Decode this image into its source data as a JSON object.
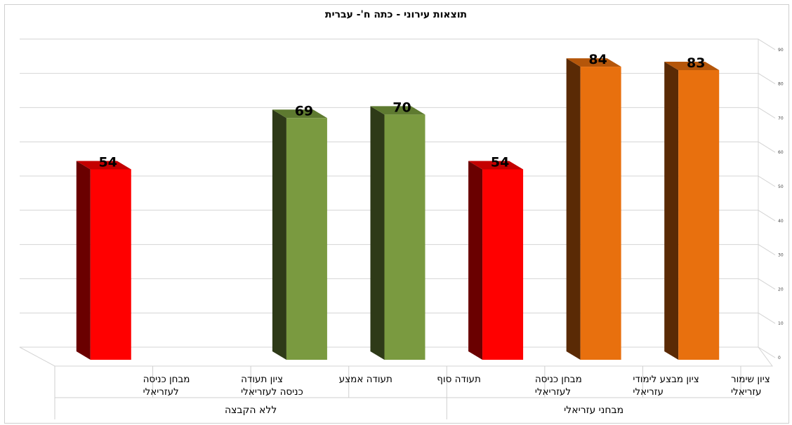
{
  "chart_data": {
    "type": "bar",
    "title": "תוצאות  עירוני - כתה ח'- עברית",
    "categories": [
      [
        "ציון שימור",
        "עזריאלי"
      ],
      [
        "ציון מבצע לימודי",
        "עזריאלי"
      ],
      [
        "מבחן כניסה",
        "לעזריאלי"
      ],
      [
        "תעודה סוף"
      ],
      [
        "תעודה אמצע"
      ],
      [
        "ציון תעודה",
        "כניסה  לעזריאלי"
      ],
      [
        "מבחן כניסה",
        "לעזריאלי"
      ]
    ],
    "values": [
      83,
      84,
      54,
      70,
      69,
      null,
      54
    ],
    "data_labels": [
      "83",
      "84",
      "54",
      "70",
      "69",
      "",
      "54"
    ],
    "bar_colors": [
      "#e8700e",
      "#e8700e",
      "#ff0000",
      "#7a9a40",
      "#7a9a40",
      null,
      "#ff0000"
    ],
    "side_colors": [
      "#5a2a05",
      "#5a2a05",
      "#6a0000",
      "#2e3a18",
      "#2e3a18",
      null,
      "#6a0000"
    ],
    "top_colors": [
      "#b5560a",
      "#b5560a",
      "#c40000",
      "#5e7a30",
      "#5e7a30",
      null,
      "#c40000"
    ],
    "groups": [
      {
        "label": "מבחני עזריאלי",
        "categories": [
          0,
          1,
          2
        ]
      },
      {
        "label": "ללא הקבצה",
        "categories": [
          3,
          4,
          5,
          6
        ]
      }
    ],
    "ylim": [
      0,
      90
    ],
    "yticks": [
      0,
      10,
      20,
      30,
      40,
      50,
      60,
      70,
      80,
      90
    ],
    "xlabel": "",
    "ylabel": "",
    "grid": true,
    "legend": "none",
    "category_order": "right-to-left"
  }
}
